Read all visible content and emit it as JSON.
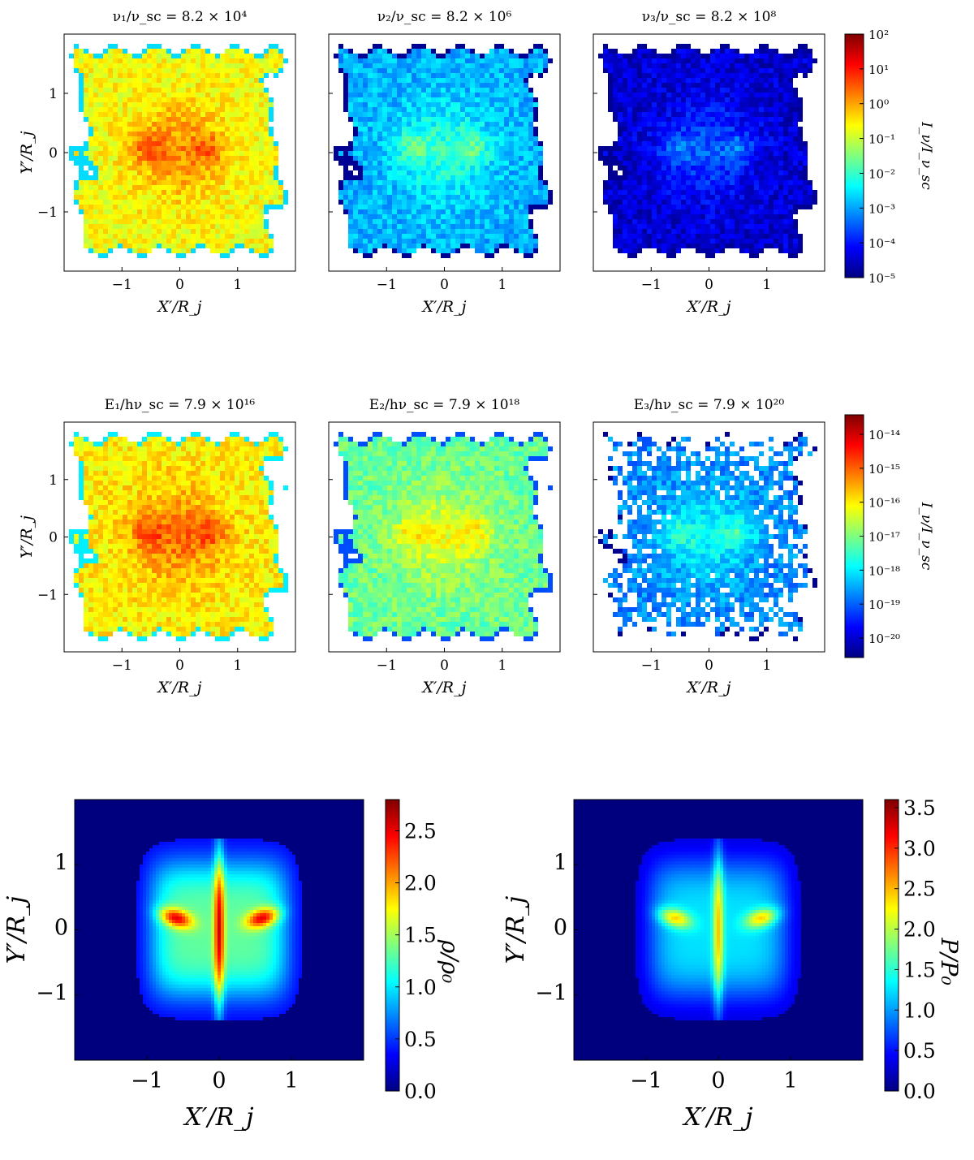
{
  "chart_data": [
    {
      "type": "heatmap",
      "group": "row1",
      "title": "ν₁/ν_sc = 8.2 × 10⁴",
      "xlabel": "X′/R_j",
      "ylabel": "Y′/R_j",
      "xlim": [
        -2,
        2
      ],
      "ylim": [
        -2,
        2
      ],
      "xticks": [
        "−1",
        "0",
        "1"
      ],
      "yticks": [
        "1",
        "0",
        "−1"
      ],
      "scale": "log",
      "level": 0.62
    },
    {
      "type": "heatmap",
      "group": "row1",
      "title": "ν₂/ν_sc = 8.2 × 10⁶",
      "xlabel": "X′/R_j",
      "xlim": [
        -2,
        2
      ],
      "ylim": [
        -2,
        2
      ],
      "xticks": [
        "−1",
        "0",
        "1"
      ],
      "scale": "log",
      "level": 0.3
    },
    {
      "type": "heatmap",
      "group": "row1",
      "title": "ν₃/ν_sc = 8.2 × 10⁸",
      "xlabel": "X′/R_j",
      "xlim": [
        -2,
        2
      ],
      "ylim": [
        -2,
        2
      ],
      "xticks": [
        "−1",
        "0",
        "1"
      ],
      "scale": "log",
      "level": 0.08
    },
    {
      "type": "heatmap",
      "group": "row2",
      "title": "E₁/hν_sc = 7.9 × 10¹⁶",
      "xlabel": "X′/R_j",
      "ylabel": "Y′/R_j",
      "xlim": [
        -2,
        2
      ],
      "ylim": [
        -2,
        2
      ],
      "xticks": [
        "−1",
        "0",
        "1"
      ],
      "yticks": [
        "1",
        "0",
        "−1"
      ],
      "scale": "log",
      "level": 0.64
    },
    {
      "type": "heatmap",
      "group": "row2",
      "title": "E₂/hν_sc = 7.9 × 10¹⁸",
      "xlabel": "X′/R_j",
      "xlim": [
        -2,
        2
      ],
      "ylim": [
        -2,
        2
      ],
      "xticks": [
        "−1",
        "0",
        "1"
      ],
      "scale": "log",
      "level": 0.48
    },
    {
      "type": "heatmap",
      "group": "row2",
      "title": "E₃/hν_sc = 7.9 × 10²⁰",
      "xlabel": "X′/R_j",
      "xlim": [
        -2,
        2
      ],
      "ylim": [
        -2,
        2
      ],
      "xticks": [
        "−1",
        "0",
        "1"
      ],
      "scale": "log",
      "level": 0.26
    },
    {
      "type": "heatmap",
      "group": "row3",
      "xlabel": "X′/R_j",
      "ylabel": "Y′/R_j",
      "xlim": [
        -2,
        2
      ],
      "ylim": [
        -2,
        2
      ],
      "xticks": [
        "−1",
        "0",
        "1"
      ],
      "yticks": [
        "1",
        "0",
        "−1"
      ],
      "colorbar": {
        "label": "ρ/ρ₀",
        "scale": "linear",
        "range": [
          0,
          2.8
        ],
        "ticks": [
          "0.0",
          "0.5",
          "1.0",
          "1.5",
          "2.0",
          "2.5"
        ]
      },
      "peak": 2.8
    },
    {
      "type": "heatmap",
      "group": "row3",
      "xlabel": "X′/R_j",
      "ylabel": "Y′/R_j",
      "xlim": [
        -2,
        2
      ],
      "ylim": [
        -2,
        2
      ],
      "xticks": [
        "−1",
        "0",
        "1"
      ],
      "yticks": [
        "1",
        "0",
        "−1"
      ],
      "colorbar": {
        "label": "P/P₀",
        "scale": "linear",
        "range": [
          0,
          3.6
        ],
        "ticks": [
          "0.0",
          "0.5",
          "1.0",
          "1.5",
          "2.0",
          "2.5",
          "3.0",
          "3.5"
        ]
      },
      "peak": 3.6
    }
  ],
  "colorbars": {
    "row1": {
      "label": "I_ν/I_ν_sc",
      "scale": "log",
      "ticks": [
        "10²",
        "10¹",
        "10⁰",
        "10⁻¹",
        "10⁻²",
        "10⁻³",
        "10⁻⁴",
        "10⁻⁵"
      ]
    },
    "row2": {
      "label": "I_ν/I_ν_sc",
      "scale": "log",
      "ticks": [
        "10⁻¹⁴",
        "10⁻¹⁵",
        "10⁻¹⁶",
        "10⁻¹⁷",
        "10⁻¹⁸",
        "10⁻¹⁹",
        "10⁻²⁰"
      ]
    }
  },
  "colormap": [
    "#00007f",
    "#0000ff",
    "#007fff",
    "#00ffff",
    "#7fff7f",
    "#ffff00",
    "#ff7f00",
    "#ff0000",
    "#7f0000"
  ]
}
